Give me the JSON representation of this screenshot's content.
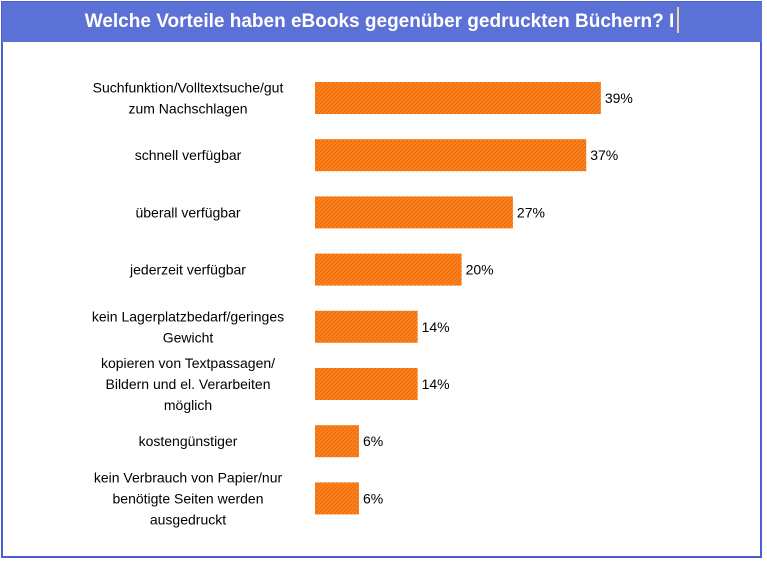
{
  "header": {
    "title": "Welche Vorteile haben eBooks gegenüber gedruckten Büchern? I"
  },
  "colors": {
    "header_bg": "#5b71d6",
    "bar": "#ff7f1a",
    "bar_hatch": "#e36d10",
    "frame": "#4a5fd0"
  },
  "chart_data": {
    "type": "bar",
    "orientation": "horizontal",
    "title": "Welche Vorteile haben eBooks gegenüber gedruckten Büchern? I",
    "categories": [
      [
        "Suchfunktion/Volltextsuche/gut",
        "zum Nachschlagen"
      ],
      [
        "schnell verfügbar"
      ],
      [
        "überall verfügbar"
      ],
      [
        "jederzeit verfügbar"
      ],
      [
        "kein Lagerplatzbedarf/geringes",
        "Gewicht"
      ],
      [
        "kopieren von Textpassagen/",
        "Bildern und el. Verarbeiten",
        "möglich"
      ],
      [
        "kostengünstiger"
      ],
      [
        "kein Verbrauch von Papier/nur",
        "benötigte Seiten werden",
        "ausgedruckt"
      ]
    ],
    "values": [
      39,
      37,
      27,
      20,
      14,
      14,
      6,
      6
    ],
    "value_labels": [
      "39%",
      "37%",
      "27%",
      "20%",
      "14%",
      "14%",
      "6%",
      "6%"
    ],
    "unit": "%",
    "grid": false,
    "legend": "none"
  }
}
